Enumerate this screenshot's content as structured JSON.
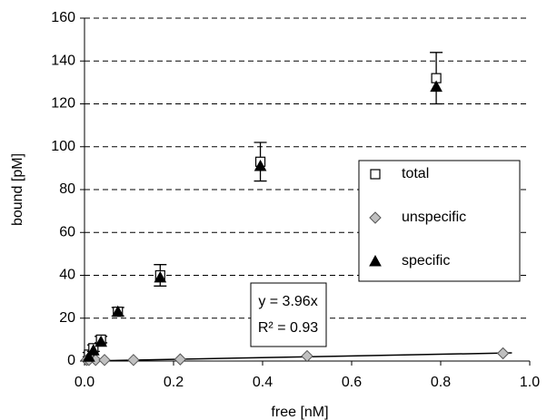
{
  "chart_data": {
    "type": "scatter",
    "x_label": "free [nM]",
    "y_label": "bound [pM]",
    "xlim": [
      0,
      1
    ],
    "xticks": [
      {
        "value": 0,
        "label": "0.0"
      },
      {
        "value": 0.2,
        "label": "0.2"
      },
      {
        "value": 0.4,
        "label": "0.4"
      },
      {
        "value": 0.6,
        "label": "0.6"
      },
      {
        "value": 0.8,
        "label": "0.8"
      },
      {
        "value": 1,
        "label": "1.0"
      }
    ],
    "ylim": [
      0,
      160
    ],
    "yticks": [
      0,
      20,
      40,
      60,
      80,
      100,
      120,
      140,
      160
    ],
    "grid": true,
    "legend": "right",
    "series": [
      {
        "name": "total",
        "marker": "square",
        "color": "#ffffff",
        "x": [
          0.01,
          0.02,
          0.037,
          0.075,
          0.17,
          0.395,
          0.79
        ],
        "values": [
          3,
          6,
          10,
          23,
          40,
          93,
          132
        ],
        "errors": [
          1,
          1.5,
          1.5,
          2,
          5,
          9,
          12
        ]
      },
      {
        "name": "unspecific",
        "marker": "diamond",
        "color": "#c0c0c0",
        "x": [
          0.005,
          0.01,
          0.025,
          0.045,
          0.11,
          0.215,
          0.5,
          0.94
        ],
        "values": [
          0.5,
          0.5,
          0.5,
          0.5,
          0.5,
          0.8,
          2.3,
          3.6
        ],
        "trendline": {
          "slope": 3.96,
          "label": "y = 3.96x",
          "r2_label": "R² = 0.93"
        }
      },
      {
        "name": "specific",
        "marker": "triangle",
        "color": "#000000",
        "x": [
          0.01,
          0.02,
          0.037,
          0.075,
          0.17,
          0.395,
          0.79
        ],
        "values": [
          2,
          5,
          9,
          23,
          39,
          91,
          128
        ]
      }
    ]
  }
}
